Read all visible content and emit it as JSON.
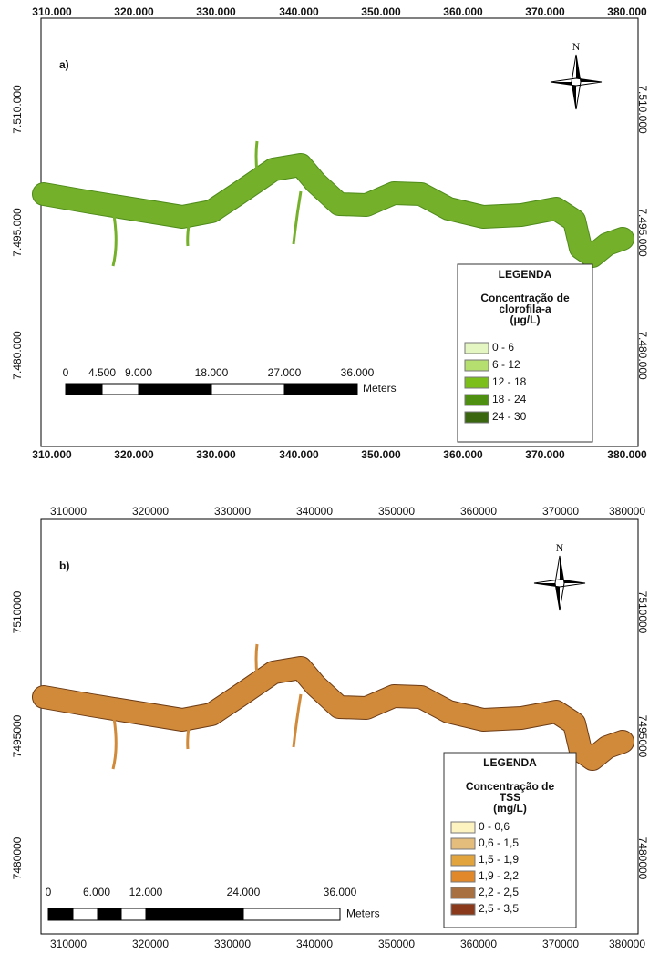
{
  "panels": [
    {
      "label": "a)",
      "north": "N",
      "river_color": "#74b02a",
      "river_edge": "#4e8a1a",
      "x_labels": [
        "310.000",
        "320.000",
        "330.000",
        "340.000",
        "350.000",
        "360.000",
        "370.000",
        "380.000"
      ],
      "y_labels": [
        "7.510.000",
        "7.495.000",
        "7.480.000"
      ],
      "legend": {
        "title": "LEGENDA",
        "subtitle": [
          "Concentração de",
          "clorofila-a",
          "(µg/L)"
        ],
        "items": [
          {
            "label": "0 - 6",
            "color": "#e4f7c2"
          },
          {
            "label": "6 - 12",
            "color": "#b5df6e"
          },
          {
            "label": "12 - 18",
            "color": "#7cbf1a"
          },
          {
            "label": "18 - 24",
            "color": "#4e8f12"
          },
          {
            "label": "24 - 30",
            "color": "#3a6610"
          }
        ]
      },
      "scale": {
        "labels": [
          "0",
          "4.500",
          "9.000",
          "18.000",
          "27.000",
          "36.000"
        ],
        "unit": "Meters"
      }
    },
    {
      "label": "b)",
      "north": "N",
      "river_color": "#d08a3a",
      "river_edge": "#6b3a14",
      "x_labels": [
        "310000",
        "320000",
        "330000",
        "340000",
        "350000",
        "360000",
        "370000",
        "380000"
      ],
      "y_labels": [
        "7510000",
        "7495000",
        "7480000"
      ],
      "legend": {
        "title": "LEGENDA",
        "subtitle": [
          "Concentração de",
          "TSS",
          "(mg/L)"
        ],
        "items": [
          {
            "label": "0 - 0,6",
            "color": "#fcf3c0"
          },
          {
            "label": "0,6 - 1,5",
            "color": "#e4bd7c"
          },
          {
            "label": "1,5 - 1,9",
            "color": "#e2a43c"
          },
          {
            "label": "1,9 - 2,2",
            "color": "#e0882a"
          },
          {
            "label": "2,2 - 2,5",
            "color": "#a87040"
          },
          {
            "label": "2,5 - 3,5",
            "color": "#8a3a1a"
          }
        ]
      },
      "scale": {
        "labels": [
          "0",
          "6.000",
          "12.000",
          "24.000",
          "36.000"
        ],
        "unit": "Meters"
      }
    }
  ]
}
